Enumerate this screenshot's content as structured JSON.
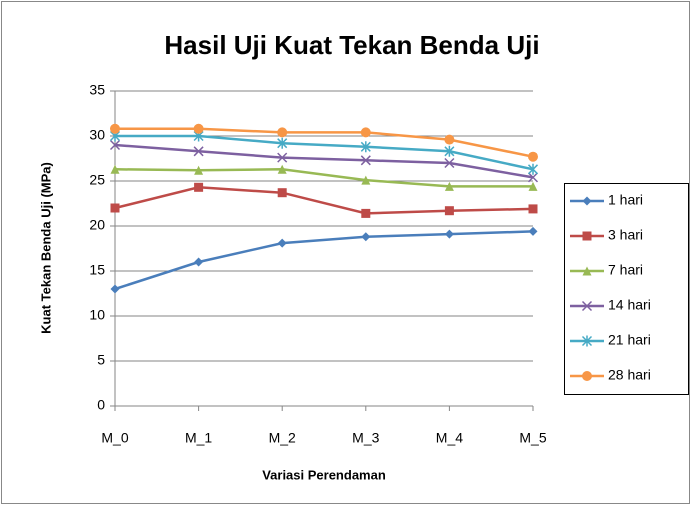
{
  "chart_data": {
    "type": "line",
    "title": "Hasil Uji Kuat Tekan Benda Uji",
    "x_label": "Variasi Perendaman",
    "y_label": "Kuat Tekan Benda Uji (MPa)",
    "categories": [
      "M_0",
      "M_1",
      "M_2",
      "M_3",
      "M_4",
      "M_5"
    ],
    "series": [
      {
        "name": "1 hari",
        "color": "#4a7ebb",
        "marker": "diamond",
        "values": [
          13.0,
          16.0,
          18.1,
          18.8,
          19.1,
          19.4
        ]
      },
      {
        "name": "3 hari",
        "color": "#be4b48",
        "marker": "square",
        "values": [
          22.0,
          24.3,
          23.7,
          21.4,
          21.7,
          21.9
        ]
      },
      {
        "name": "7 hari",
        "color": "#98b954",
        "marker": "triangle",
        "values": [
          26.3,
          26.2,
          26.3,
          25.1,
          24.4,
          24.4
        ]
      },
      {
        "name": "14 hari",
        "color": "#7d60a0",
        "marker": "x",
        "values": [
          29.0,
          28.3,
          27.6,
          27.3,
          27.0,
          25.4
        ]
      },
      {
        "name": "21 hari",
        "color": "#46aac5",
        "marker": "star",
        "values": [
          30.0,
          30.0,
          29.2,
          28.8,
          28.3,
          26.3
        ]
      },
      {
        "name": "28 hari",
        "color": "#f79646",
        "marker": "circle",
        "values": [
          30.8,
          30.8,
          30.4,
          30.4,
          29.6,
          27.7
        ]
      }
    ],
    "ylim": [
      0,
      35
    ],
    "yticks": [
      0,
      5,
      10,
      15,
      20,
      25,
      30,
      35
    ],
    "grid": true,
    "legend": "right"
  }
}
